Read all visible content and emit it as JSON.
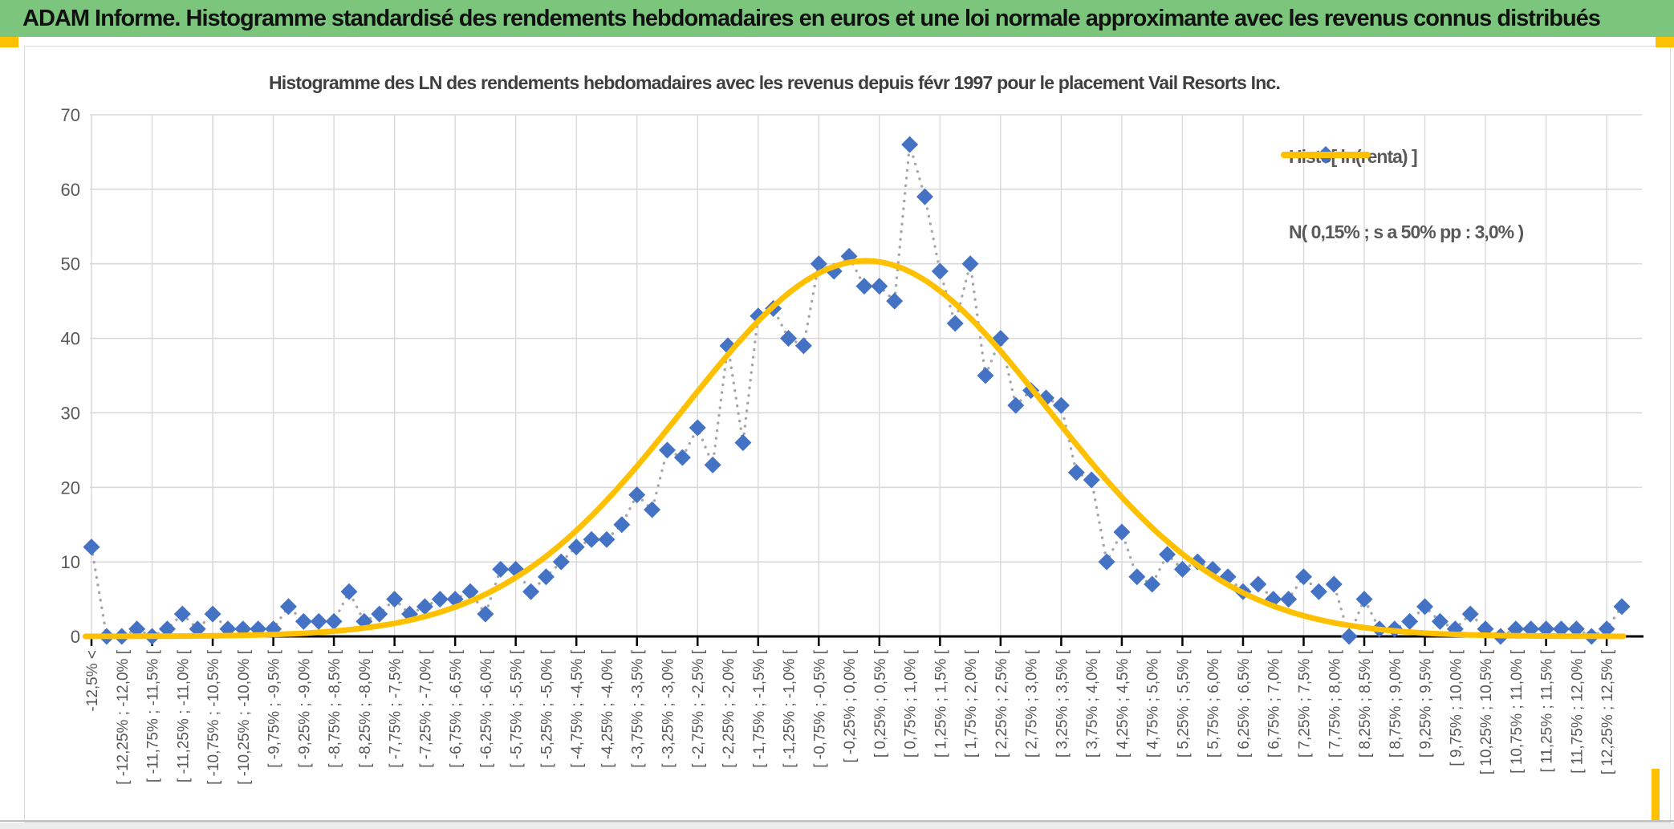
{
  "header": {
    "title": "ADAM Informe. Histogramme standardisé des rendements hebdomadaires en euros et une loi normale approximante avec les revenus connus distribués"
  },
  "chart_data": {
    "type": "line",
    "title": "Histogramme des LN des rendements hebdomadaires avec les revenus depuis févr 1997 pour le placement Vail Resorts Inc.",
    "ylim": [
      0,
      70
    ],
    "y_ticks": [
      0,
      10,
      20,
      30,
      40,
      50,
      60,
      70
    ],
    "grid": true,
    "legend_position": "top-right",
    "bins_per_label": 2,
    "x_axis_labels": [
      "-12,5% <",
      "[ -12,25% ; -12,0% [",
      "[ -11,75% ; -11,5% [",
      "[ -11,25% ; -11,0% [",
      "[ -10,75% ; -10,5% [",
      "[ -10,25% ; -10,0% [",
      "[ -9,75% ; -9,5% [",
      "[ -9,25% ; -9,0% [",
      "[ -8,75% ; -8,5% [",
      "[ -8,25% ; -8,0% [",
      "[ -7,75% ; -7,5% [",
      "[ -7,25% ; -7,0% [",
      "[ -6,75% ; -6,5% [",
      "[ -6,25% ; -6,0% [",
      "[ -5,75% ; -5,5% [",
      "[ -5,25% ; -5,0% [",
      "[ -4,75% ; -4,5% [",
      "[ -4,25% ; -4,0% [",
      "[ -3,75% ; -3,5% [",
      "[ -3,25% ; -3,0% [",
      "[ -2,75% ; -2,5% [",
      "[ -2,25% ; -2,0% [",
      "[ -1,75% ; -1,5% [",
      "[ -1,25% ; -1,0% [",
      "[ -0,75% ; -0,5% [",
      "[ -0,25% ; 0,0% [",
      "[ 0,25% ; 0,5% [",
      "[ 0,75% ; 1,0% [",
      "[ 1,25% ; 1,5% [",
      "[ 1,75% ; 2,0% [",
      "[ 2,25% ; 2,5% [",
      "[ 2,75% ; 3,0% [",
      "[ 3,25% ; 3,5% [",
      "[ 3,75% ; 4,0% [",
      "[ 4,25% ; 4,5% [",
      "[ 4,75% ; 5,0% [",
      "[ 5,25% ; 5,5% [",
      "[ 5,75% ; 6,0% [",
      "[ 6,25% ; 6,5% [",
      "[ 6,75% ; 7,0% [",
      "[ 7,25% ; 7,5% [",
      "[ 7,75% ; 8,0% [",
      "[ 8,25% ; 8,5% [",
      "[ 8,75% ; 9,0% [",
      "[ 9,25% ; 9,5% [",
      "[ 9,75% ; 10,0% [",
      "[ 10,25% ; 10,5% [",
      "[ 10,75% ; 11,0% [",
      "[ 11,25% ; 11,5% [",
      "[ 11,75% ; 12,0% [",
      "[ 12,25% ; 12,5% ["
    ],
    "series": [
      {
        "name": "Histo[ ln(renta) ]",
        "marker": "diamond",
        "marker_color": "#4472c4",
        "connector": "dotted",
        "connector_color": "#a6a6a6",
        "values": [
          12,
          0,
          0,
          1,
          0,
          1,
          3,
          1,
          3,
          1,
          1,
          1,
          1,
          4,
          2,
          2,
          2,
          6,
          2,
          3,
          5,
          3,
          4,
          5,
          5,
          6,
          3,
          9,
          9,
          6,
          8,
          10,
          12,
          13,
          13,
          15,
          19,
          17,
          25,
          24,
          28,
          23,
          39,
          26,
          43,
          44,
          40,
          39,
          50,
          49,
          51,
          47,
          47,
          45,
          66,
          59,
          49,
          42,
          50,
          35,
          40,
          31,
          33,
          32,
          31,
          22,
          21,
          10,
          14,
          8,
          7,
          11,
          9,
          10,
          9,
          8,
          6,
          7,
          5,
          5,
          8,
          6,
          7,
          0,
          5,
          1,
          1,
          2,
          4,
          2,
          1,
          3,
          1,
          0,
          1,
          1,
          1,
          1,
          1,
          0,
          1,
          4
        ]
      },
      {
        "name": "N( 0,15% ; s a 50% pp : 3,0% )",
        "type": "normal-curve",
        "color": "#ffc000",
        "mean_pct": 0.15,
        "sd_pct": 3.0,
        "peak_value": 50.4
      }
    ]
  },
  "legend": {
    "histo_label": "Histo[ ln(renta) ]",
    "normal_label": "N( 0,15% ; s a 50% pp : 3,0% )"
  },
  "colors": {
    "header_green": "#7cc57c",
    "accent_gold": "#ffc000",
    "diamond_blue": "#4472c4",
    "dotted_gray": "#a6a6a6",
    "text_gray": "#595959",
    "grid_gray": "#d9d9d9",
    "axis_black": "#000000"
  }
}
